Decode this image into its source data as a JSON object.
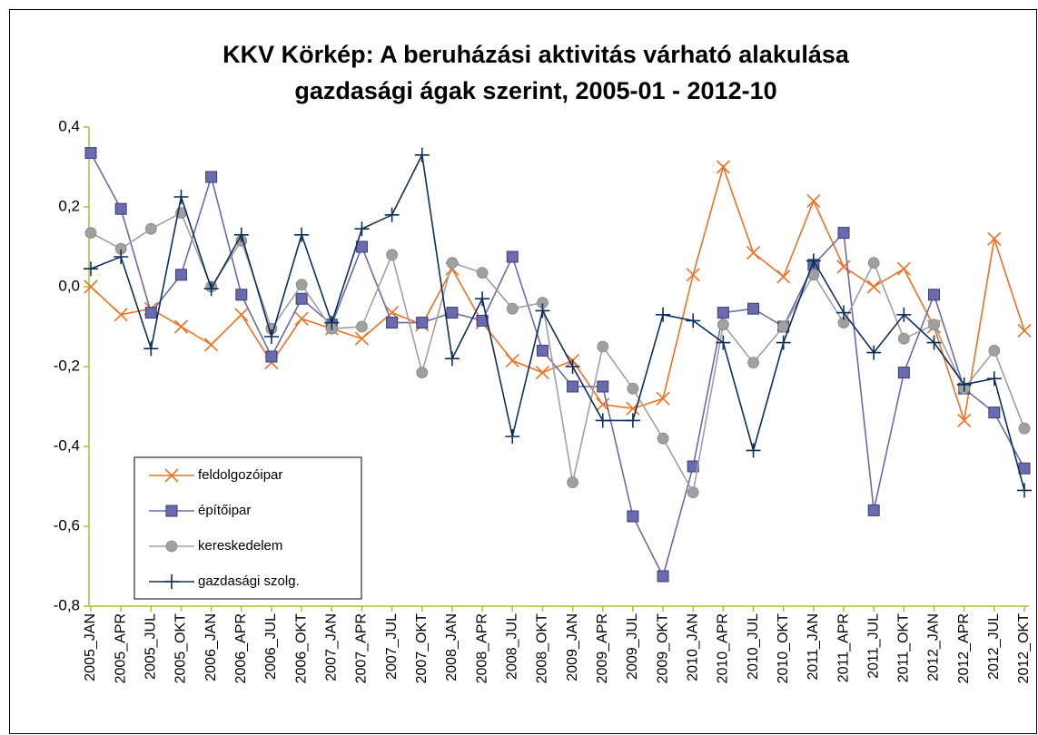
{
  "chart_data": {
    "type": "line",
    "title": [
      "KKV Körkép: A beruházási aktivitás várható alakulása",
      "gazdasági ágak szerint, 2005-01 - 2012-10"
    ],
    "categories": [
      "2005_JAN",
      "2005_APR",
      "2005_JUL",
      "2005_OKT",
      "2006_JAN",
      "2006_APR",
      "2006_JUL",
      "2006_OKT",
      "2007_JAN",
      "2007_APR",
      "2007_JUL",
      "2007_OKT",
      "2008_JAN",
      "2008_APR",
      "2008_JUL",
      "2008_OKT",
      "2009_JAN",
      "2009_APR",
      "2009_JUL",
      "2009_OKT",
      "2010_JAN",
      "2010_APR",
      "2010_JUL",
      "2010_OKT",
      "2011_JAN",
      "2011_APR",
      "2011_JUL",
      "2011_OKT",
      "2012_JAN",
      "2012_APR",
      "2012_JUL",
      "2012_OKT"
    ],
    "series": [
      {
        "name": "feldolgozóipar",
        "color": "#f07020",
        "marker": "x",
        "values": [
          0.0,
          -0.07,
          -0.055,
          -0.1,
          -0.145,
          -0.07,
          -0.19,
          -0.08,
          -0.105,
          -0.13,
          -0.065,
          -0.095,
          0.045,
          -0.09,
          -0.185,
          -0.215,
          -0.185,
          -0.295,
          -0.305,
          -0.28,
          0.03,
          0.3,
          0.085,
          0.025,
          0.215,
          0.05,
          0.0,
          0.045,
          -0.1,
          -0.335,
          0.12,
          -0.11
        ]
      },
      {
        "name": "építőipar",
        "color": "#6a6aae",
        "marker": "square",
        "values": [
          0.335,
          0.195,
          -0.065,
          0.03,
          0.275,
          -0.02,
          -0.175,
          -0.03,
          -0.095,
          0.1,
          -0.09,
          -0.09,
          -0.065,
          -0.085,
          0.075,
          -0.16,
          -0.25,
          -0.25,
          -0.575,
          -0.725,
          -0.45,
          -0.065,
          -0.055,
          -0.1,
          0.055,
          0.135,
          -0.56,
          -0.215,
          -0.02,
          -0.255,
          -0.315,
          -0.455
        ]
      },
      {
        "name": "kereskedelem",
        "color": "#a0a0a0",
        "marker": "circle",
        "values": [
          0.135,
          0.095,
          0.145,
          0.185,
          0.0,
          0.115,
          -0.105,
          0.005,
          -0.105,
          -0.1,
          0.08,
          -0.215,
          0.06,
          0.035,
          -0.055,
          -0.04,
          -0.49,
          -0.15,
          -0.255,
          -0.38,
          -0.515,
          -0.095,
          -0.19,
          -0.1,
          0.03,
          -0.09,
          0.06,
          -0.13,
          -0.095,
          -0.255,
          -0.16,
          -0.355
        ]
      },
      {
        "name": "gazdasági szolg.",
        "color": "#0d2f5a",
        "marker": "plus",
        "values": [
          0.045,
          0.075,
          -0.155,
          0.225,
          -0.005,
          0.13,
          -0.125,
          0.13,
          -0.09,
          0.145,
          0.18,
          0.33,
          -0.18,
          -0.03,
          -0.375,
          -0.06,
          -0.2,
          -0.335,
          -0.335,
          -0.07,
          -0.085,
          -0.14,
          -0.41,
          -0.14,
          0.065,
          -0.065,
          -0.165,
          -0.07,
          -0.14,
          -0.245,
          -0.23,
          -0.51
        ]
      }
    ],
    "ylim": [
      -0.8,
      0.4
    ],
    "yticks": [
      {
        "value": -0.8,
        "label": "-0,8"
      },
      {
        "value": -0.6,
        "label": "-0,6"
      },
      {
        "value": -0.4,
        "label": "-0,4"
      },
      {
        "value": -0.2,
        "label": "-0,2"
      },
      {
        "value": 0,
        "label": "0,0"
      },
      {
        "value": 0.2,
        "label": "0,2"
      },
      {
        "value": 0.4,
        "label": "0,4"
      }
    ],
    "grid": false,
    "legend": "lower left"
  }
}
